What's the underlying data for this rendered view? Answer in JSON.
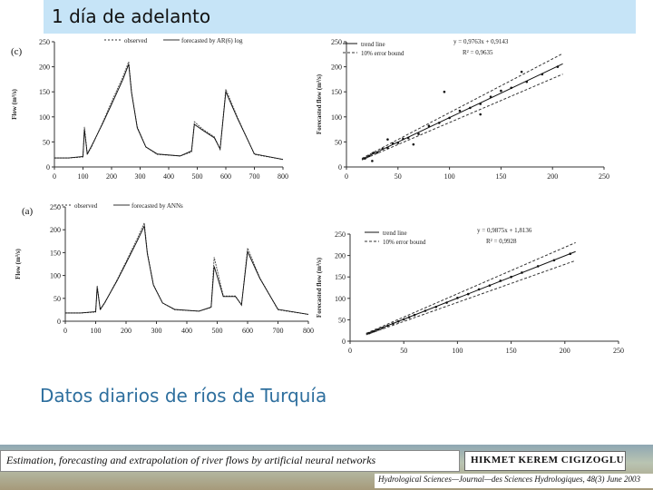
{
  "slide": {
    "title": "1 día de adelanto",
    "subtitle": "Datos diarios de ríos de Turquía"
  },
  "footer": {
    "paper_title": "Estimation, forecasting and extrapolation of river flows by artificial neural networks",
    "author": "HIKMET KEREM CIGIZOGLU",
    "journal": "Hydrological Sciences—Journal—des Sciences Hydrologiques, 48(3) June 2003"
  },
  "chart_data": [
    {
      "type": "line",
      "panel_label": "(c)",
      "ylabel": "Flow (m³/s)",
      "xlim": [
        0,
        800
      ],
      "ylim": [
        0,
        250
      ],
      "xticks": [
        0,
        100,
        200,
        300,
        400,
        500,
        600,
        700,
        800
      ],
      "yticks": [
        0,
        50,
        100,
        150,
        200,
        250
      ],
      "legend": [
        "observed",
        "forecasted by AR(6) log"
      ],
      "x": [
        0,
        50,
        100,
        105,
        115,
        130,
        170,
        200,
        240,
        260,
        270,
        290,
        320,
        360,
        440,
        480,
        490,
        520,
        560,
        580,
        600,
        640,
        700,
        800
      ],
      "series": [
        {
          "name": "observed",
          "values": [
            18,
            18,
            20,
            80,
            25,
            40,
            90,
            130,
            180,
            210,
            150,
            80,
            40,
            25,
            22,
            30,
            90,
            75,
            60,
            35,
            155,
            100,
            25,
            15
          ]
        },
        {
          "name": "forecasted by AR(6) log",
          "values": [
            18,
            18,
            21,
            75,
            26,
            42,
            88,
            125,
            175,
            205,
            148,
            78,
            40,
            26,
            22,
            32,
            85,
            73,
            58,
            36,
            150,
            98,
            26,
            15
          ]
        }
      ]
    },
    {
      "type": "scatter",
      "panel_label": "",
      "ylabel": "Forecasted flow (m³/s)",
      "xlim": [
        0,
        250
      ],
      "ylim": [
        0,
        250
      ],
      "xticks": [
        0,
        50,
        100,
        150,
        200,
        250
      ],
      "yticks": [
        0,
        50,
        100,
        150,
        200,
        250
      ],
      "legend": [
        "trend line",
        "10% error bound"
      ],
      "equation": "y = 0,9763x + 0,9143",
      "r2": "R² = 0,9635",
      "slope": 0.9763,
      "intercept": 0.9143,
      "points_x": [
        18,
        22,
        26,
        30,
        35,
        40,
        45,
        50,
        55,
        60,
        70,
        80,
        90,
        100,
        110,
        120,
        130,
        140,
        150,
        160,
        175,
        190,
        205,
        25,
        40,
        65,
        95,
        130,
        170
      ],
      "points_y": [
        17,
        22,
        28,
        29,
        36,
        38,
        47,
        48,
        56,
        58,
        66,
        82,
        88,
        98,
        112,
        118,
        126,
        140,
        152,
        158,
        170,
        185,
        200,
        12,
        55,
        45,
        150,
        105,
        190
      ]
    },
    {
      "type": "line",
      "panel_label": "(a)",
      "ylabel": "Flow (m³/s)",
      "xlim": [
        0,
        800
      ],
      "ylim": [
        0,
        250
      ],
      "xticks": [
        0,
        100,
        200,
        300,
        400,
        500,
        600,
        700,
        800
      ],
      "yticks": [
        0,
        50,
        100,
        150,
        200,
        250
      ],
      "legend": [
        "observed",
        "forecasted by ANNs"
      ],
      "x": [
        0,
        50,
        100,
        105,
        115,
        130,
        170,
        200,
        240,
        260,
        270,
        290,
        320,
        360,
        440,
        480,
        490,
        520,
        560,
        580,
        600,
        640,
        700,
        800
      ],
      "series": [
        {
          "name": "observed",
          "values": [
            18,
            18,
            20,
            78,
            25,
            40,
            90,
            130,
            185,
            215,
            150,
            80,
            40,
            25,
            22,
            30,
            140,
            55,
            55,
            35,
            160,
            95,
            25,
            15
          ]
        },
        {
          "name": "forecasted by ANNs",
          "values": [
            18,
            18,
            21,
            74,
            26,
            41,
            88,
            127,
            180,
            208,
            148,
            79,
            40,
            26,
            22,
            31,
            120,
            54,
            54,
            36,
            152,
            94,
            26,
            15
          ]
        }
      ]
    },
    {
      "type": "scatter",
      "panel_label": "",
      "ylabel": "Forecasted flow (m³/s)",
      "xlim": [
        0,
        250
      ],
      "ylim": [
        0,
        250
      ],
      "xticks": [
        0,
        50,
        100,
        150,
        200,
        250
      ],
      "yticks": [
        0,
        50,
        100,
        150,
        200,
        250
      ],
      "legend": [
        "trend line",
        "10% error bound"
      ],
      "equation": "y = 0,9875x + 1,8136",
      "r2": "R² = 0,9928",
      "slope": 0.9875,
      "intercept": 1.8136,
      "points_x": [
        18,
        22,
        26,
        30,
        35,
        40,
        45,
        50,
        55,
        60,
        70,
        80,
        90,
        100,
        110,
        120,
        130,
        140,
        150,
        160,
        175,
        190,
        205
      ],
      "points_y": [
        19,
        23,
        27,
        31,
        36,
        41,
        46,
        51,
        56,
        61,
        71,
        80,
        90,
        101,
        110,
        121,
        130,
        141,
        150,
        160,
        175,
        189,
        204
      ]
    }
  ]
}
